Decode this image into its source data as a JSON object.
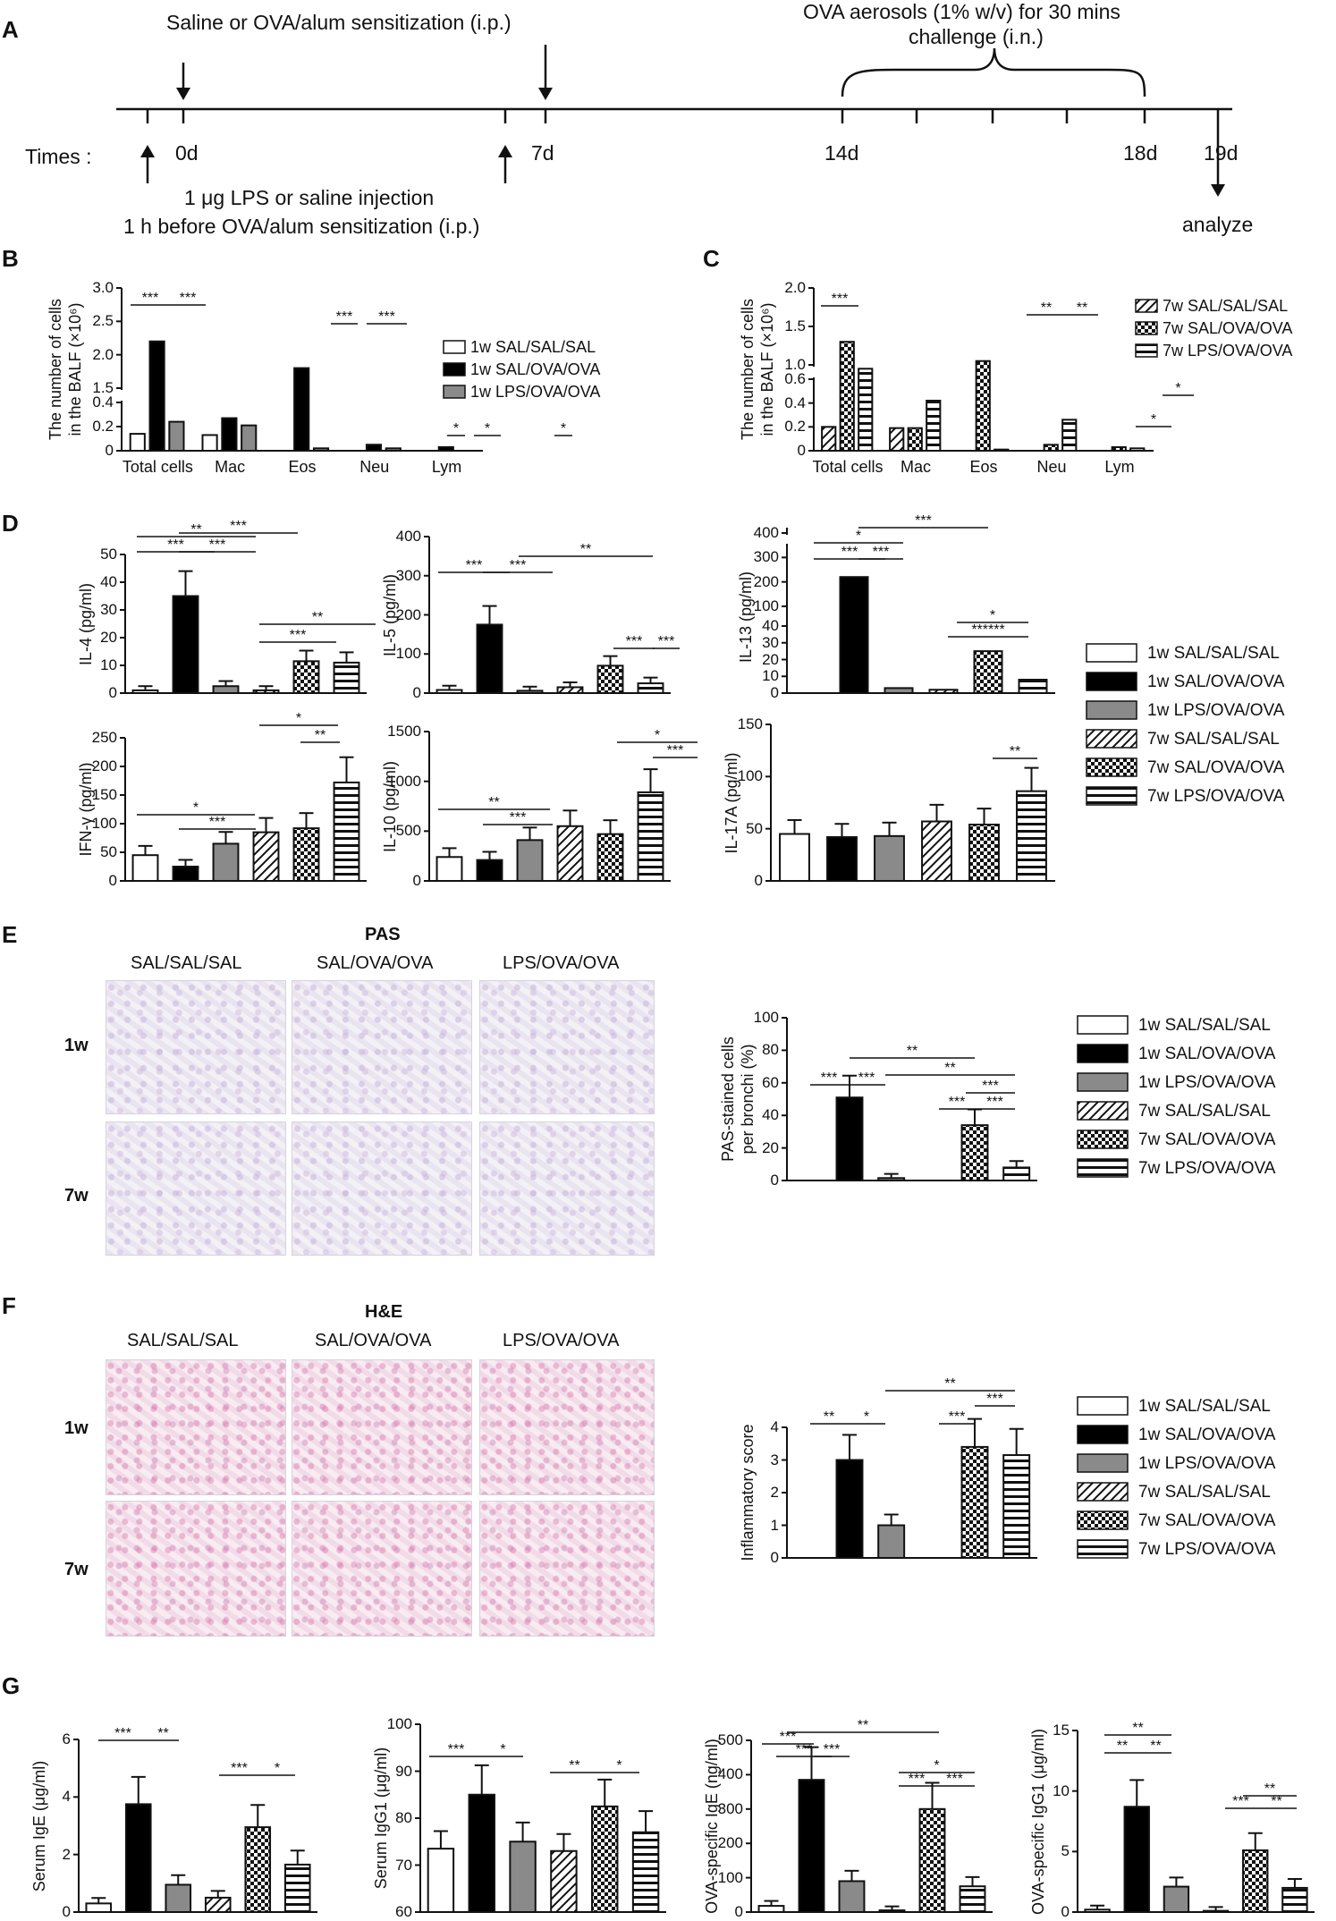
{
  "panels": {
    "A": "A",
    "B": "B",
    "C": "C",
    "D": "D",
    "E": "E",
    "F": "F",
    "G": "G"
  },
  "timeline": {
    "top_left_label": "Saline or OVA/alum sensitization (i.p.)",
    "top_right_label_1": "OVA aerosols (1% w/v) for 30 mins",
    "top_right_label_2": "challenge (i.n.)",
    "times_label": "Times :",
    "days": [
      "0d",
      "7d",
      "14d",
      "18d",
      "19d"
    ],
    "bottom_label_1": "1 μg LPS or saline injection",
    "bottom_label_2": "1 h before OVA/alum sensitization (i.p.)",
    "analyze_label": "analyze"
  },
  "legend_groups": [
    "1w SAL/SAL/SAL",
    "1w SAL/OVA/OVA",
    "1w LPS/OVA/OVA",
    "7w SAL/SAL/SAL",
    "7w SAL/OVA/OVA",
    "7w LPS/OVA/OVA"
  ],
  "micrographs": {
    "pas_title": "PAS",
    "he_title": "H&E",
    "columns": [
      "SAL/SAL/SAL",
      "SAL/OVA/OVA",
      "LPS/OVA/OVA"
    ],
    "rows": [
      "1w",
      "7w"
    ]
  },
  "chart_data": [
    {
      "id": "B",
      "type": "bar",
      "ylabel_1": "The number of cells",
      "ylabel_2": "in the BALF (×10⁶)",
      "categories": [
        "Total cells",
        "Mac",
        "Eos",
        "Neu",
        "Lym"
      ],
      "yticks_low": [
        "0",
        "0.2",
        "0.4"
      ],
      "yticks_high": [
        "1.5",
        "2.0",
        "2.5",
        "3.0"
      ],
      "series": [
        {
          "name": "1w SAL/SAL/SAL",
          "values": [
            0.14,
            0.13,
            0,
            0,
            0
          ]
        },
        {
          "name": "1w SAL/OVA/OVA",
          "values": [
            2.2,
            0.27,
            1.8,
            0.05,
            0.03
          ]
        },
        {
          "name": "1w LPS/OVA/OVA",
          "values": [
            0.24,
            0.21,
            0.02,
            0.02,
            0.0
          ]
        }
      ],
      "annotations": [
        "***",
        "***",
        "***",
        "***",
        "*",
        "*",
        "*"
      ]
    },
    {
      "id": "C",
      "type": "bar",
      "ylabel_1": "The number of cells",
      "ylabel_2": "in the BALF (×10⁶)",
      "categories": [
        "Total cells",
        "Mac",
        "Eos",
        "Neu",
        "Lym"
      ],
      "yticks_low": [
        "0",
        "0.2",
        "0.4",
        "0.6"
      ],
      "yticks_high": [
        "1.0",
        "1.5",
        "2.0"
      ],
      "series": [
        {
          "name": "7w SAL/SAL/SAL",
          "values": [
            0.2,
            0.19,
            0,
            0,
            0
          ]
        },
        {
          "name": "7w SAL/OVA/OVA",
          "values": [
            1.3,
            0.19,
            1.05,
            0.05,
            0.03
          ]
        },
        {
          "name": "7w LPS/OVA/OVA",
          "values": [
            0.95,
            0.42,
            0.01,
            0.26,
            0.02
          ]
        }
      ],
      "annotations": [
        "***",
        "**",
        "**",
        "*",
        "*"
      ]
    },
    {
      "id": "IL-4",
      "type": "bar",
      "ylabel": "IL-4 (pg/ml)",
      "yticks": [
        "0",
        "10",
        "20",
        "30",
        "40",
        "50"
      ],
      "ylim": [
        0,
        50
      ],
      "values": [
        1,
        35,
        2.5,
        1,
        11.5,
        11
      ],
      "annotations": [
        "***",
        "***",
        "**",
        "***",
        "***",
        "**"
      ]
    },
    {
      "id": "IL-5",
      "type": "bar",
      "ylabel": "IL-5 (pg/ml)",
      "yticks": [
        "0",
        "100",
        "200",
        "300",
        "400"
      ],
      "ylim": [
        0,
        400
      ],
      "values": [
        8,
        175,
        6,
        15,
        70,
        25
      ],
      "annotations": [
        "***",
        "***",
        "**",
        "***",
        "***"
      ]
    },
    {
      "id": "IL-13",
      "type": "bar",
      "ylabel": "IL-13 (pg/ml)",
      "yticks_low": [
        "0",
        "10",
        "20",
        "30",
        "40"
      ],
      "yticks_high": [
        "100",
        "200",
        "300",
        "400"
      ],
      "values": [
        0,
        220,
        3,
        2,
        25,
        8
      ],
      "annotations": [
        "***",
        "***",
        "*",
        "***",
        "*",
        "******"
      ]
    },
    {
      "id": "IFN-γ",
      "type": "bar",
      "ylabel": "IFN-γ (pg/ml)",
      "yticks": [
        "0",
        "50",
        "100",
        "150",
        "200",
        "250"
      ],
      "ylim": [
        0,
        250
      ],
      "values": [
        45,
        25,
        65,
        85,
        92,
        172
      ],
      "annotations": [
        "*",
        "***",
        "*",
        "**"
      ]
    },
    {
      "id": "IL-10",
      "type": "bar",
      "ylabel": "IL-10 (pg/ml)",
      "yticks": [
        "0",
        "500",
        "1000",
        "1500"
      ],
      "ylim": [
        0,
        1500
      ],
      "values": [
        240,
        210,
        410,
        550,
        470,
        890
      ],
      "annotations": [
        "**",
        "***",
        "*",
        "***"
      ]
    },
    {
      "id": "IL-17A",
      "type": "bar",
      "ylabel": "IL-17A (pg/ml)",
      "yticks": [
        "0",
        "50",
        "100",
        "150"
      ],
      "ylim": [
        0,
        150
      ],
      "values": [
        45,
        42,
        43,
        57,
        54,
        86
      ],
      "annotations": [
        "**"
      ]
    },
    {
      "id": "PAS",
      "type": "bar",
      "ylabel_1": "PAS-stained cells",
      "ylabel_2": "per bronchi (%)",
      "yticks": [
        "0",
        "20",
        "40",
        "60",
        "80",
        "100"
      ],
      "ylim": [
        0,
        100
      ],
      "values": [
        0,
        51,
        1.5,
        0,
        34,
        8
      ],
      "annotations": [
        "***",
        "***",
        "**",
        "**",
        "***",
        "***",
        "***"
      ]
    },
    {
      "id": "Inflam",
      "type": "bar",
      "ylabel": "Inflammatory score",
      "yticks": [
        "0",
        "1",
        "2",
        "3",
        "4"
      ],
      "ylim": [
        0,
        4
      ],
      "values": [
        0,
        3,
        1,
        0,
        3.4,
        3.15
      ],
      "annotations": [
        "**",
        "*",
        "**",
        "***",
        "***"
      ]
    },
    {
      "id": "IgE",
      "type": "bar",
      "ylabel": "Serum IgE (μg/ml)",
      "yticks": [
        "0",
        "2",
        "4",
        "6"
      ],
      "ylim": [
        0,
        6
      ],
      "values": [
        0.3,
        3.75,
        0.95,
        0.5,
        2.95,
        1.65
      ],
      "annotations": [
        "***",
        "**",
        "***",
        "*"
      ]
    },
    {
      "id": "IgG1",
      "type": "bar",
      "ylabel": "Serum IgG1 (μg/ml)",
      "yticks": [
        "60",
        "70",
        "80",
        "90",
        "100"
      ],
      "ylim": [
        60,
        100
      ],
      "values": [
        73.5,
        85,
        75,
        73,
        82.5,
        77
      ],
      "annotations": [
        "***",
        "*",
        "**",
        "*"
      ]
    },
    {
      "id": "OVA-IgE",
      "type": "bar",
      "ylabel": "OVA-specific IgE (ng/ml)",
      "yticks": [
        "0",
        "100",
        "200",
        "300",
        "400",
        "500"
      ],
      "ylim": [
        0,
        500
      ],
      "values": [
        18,
        385,
        90,
        5,
        300,
        75
      ],
      "annotations": [
        "***",
        "***",
        "***",
        "**",
        "*",
        "***",
        "***"
      ]
    },
    {
      "id": "OVA-IgG1",
      "type": "bar",
      "ylabel": "OVA-specific IgG1 (μg/ml)",
      "yticks": [
        "0",
        "5",
        "10",
        "15"
      ],
      "ylim": [
        0,
        15
      ],
      "values": [
        0.2,
        8.7,
        2.1,
        0.1,
        5.1,
        2
      ],
      "annotations": [
        "**",
        "**",
        "**",
        "**",
        "***",
        "**"
      ]
    }
  ]
}
